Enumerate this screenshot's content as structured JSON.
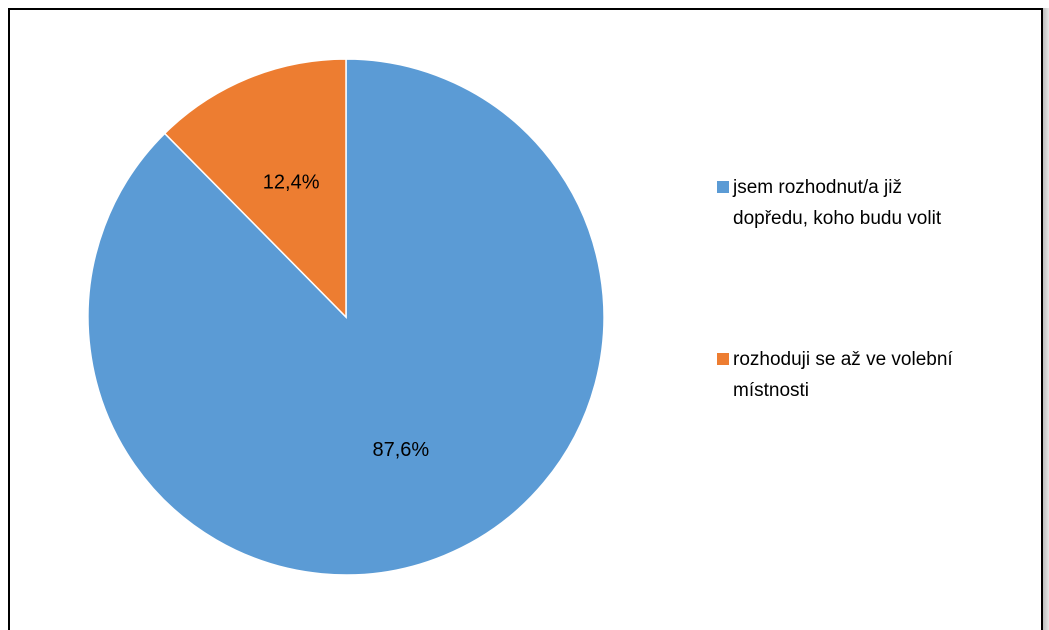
{
  "chart_data": {
    "type": "pie",
    "title": "",
    "start_angle_deg": 0,
    "direction": "clockwise",
    "slices": [
      {
        "label": "jsem rozhodnut/a již dopředu, koho budu volit",
        "value": 87.6,
        "value_label": "87,6%",
        "color": "#5b9bd5"
      },
      {
        "label": "rozhoduji se až ve volební místnosti",
        "value": 12.4,
        "value_label": "12,4%",
        "color": "#ed7d31"
      }
    ],
    "legend": {
      "placement": "right",
      "items": [
        {
          "line1": "jsem rozhodnut/a již",
          "line2": "dopředu, koho budu volit"
        },
        {
          "line1": "rozhoduji se až ve volební",
          "line2": "místnosti"
        }
      ]
    },
    "data_labels": true
  }
}
